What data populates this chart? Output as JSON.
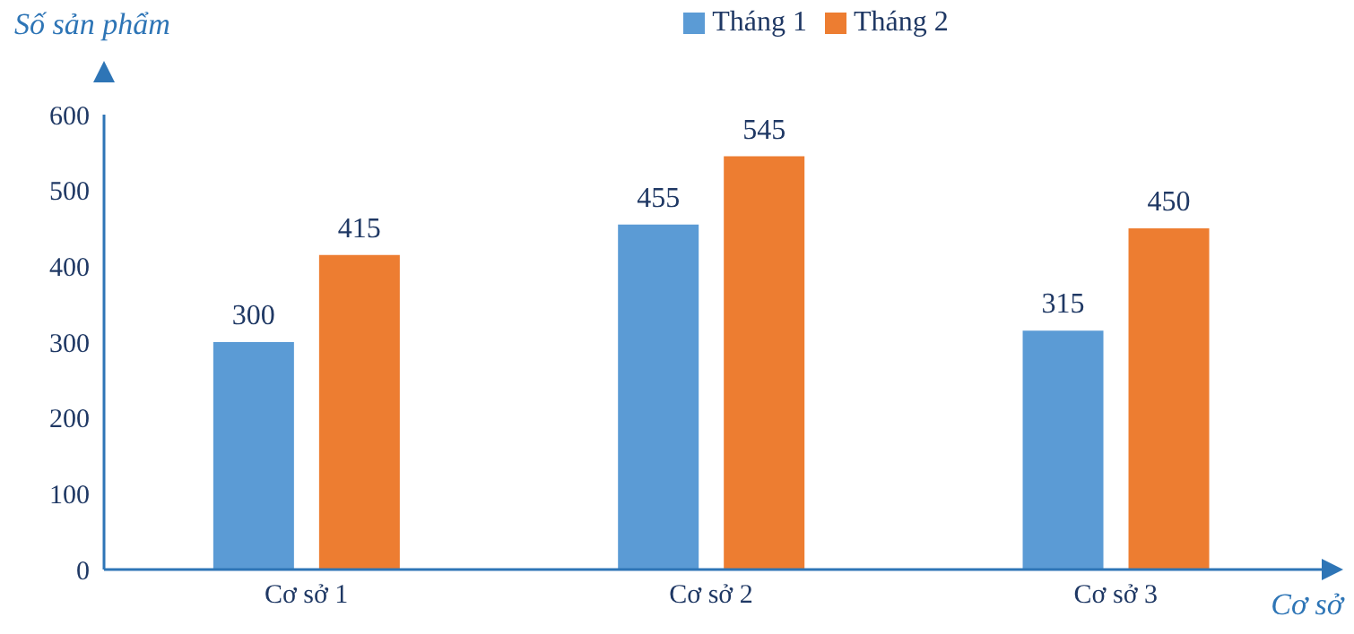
{
  "chart_data": {
    "type": "bar",
    "xlabel": "Cơ sở",
    "ylabel": "Số sản phẩm",
    "categories": [
      "Cơ sở 1",
      "Cơ sở 2",
      "Cơ sở 3"
    ],
    "series": [
      {
        "name": "Tháng 1",
        "color": "#5b9bd5",
        "values": [
          300,
          455,
          315
        ]
      },
      {
        "name": "Tháng 2",
        "color": "#ed7d31",
        "values": [
          415,
          545,
          450
        ]
      }
    ],
    "ylim": [
      0,
      600
    ],
    "yticks": [
      0,
      100,
      200,
      300,
      400,
      500,
      600
    ],
    "legend": "top",
    "data_labels": true
  }
}
